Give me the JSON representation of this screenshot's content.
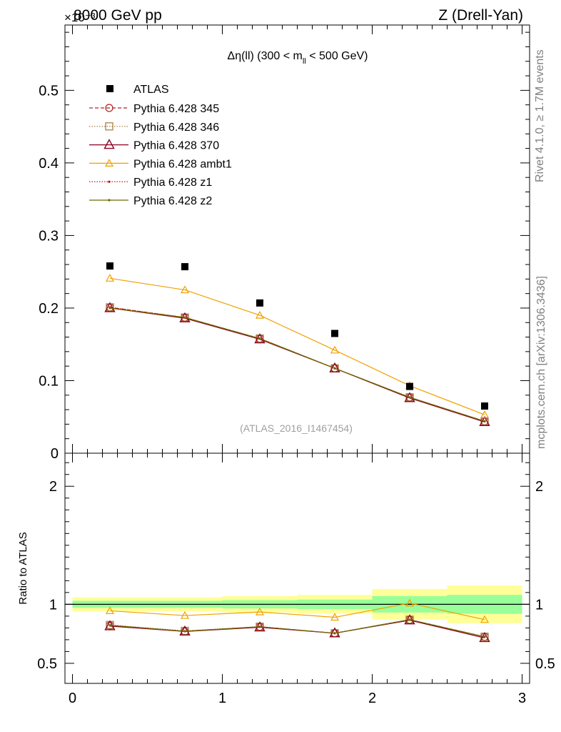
{
  "header": {
    "left_label": "8000 GeV pp",
    "exponent_label": "×10⁻³",
    "right_label": "Z (Drell-Yan)"
  },
  "side_labels": {
    "rivet": "Rivet 4.1.0, ≥ 1.7M events",
    "source": "mcplots.cern.ch [arXiv:1306.3436]"
  },
  "chart_data": {
    "type": "line",
    "title_prefix": "Δη(ll) (300 < m",
    "title_sub": "ll",
    "title_suffix": " < 500 GeV)",
    "watermark": "(ATLAS_2016_I1467454)",
    "xlabel": "",
    "ylabel": "",
    "xlim": [
      -0.05,
      3.05
    ],
    "ylim": [
      0,
      0.59
    ],
    "x_ticks": [
      0,
      1,
      2,
      3
    ],
    "y_ticks": [
      0,
      0.1,
      0.2,
      0.3,
      0.4,
      0.5
    ],
    "y_tick_labels": [
      "0",
      "0.1",
      "0.2",
      "0.3",
      "0.4",
      "0.5"
    ],
    "x_tick_labels": [
      "0",
      "1",
      "2",
      "3"
    ],
    "x": [
      0.25,
      0.75,
      1.25,
      1.75,
      2.25,
      2.75
    ],
    "data": {
      "name": "ATLAS",
      "values": [
        0.258,
        0.257,
        0.207,
        0.165,
        0.092,
        0.065
      ]
    },
    "series": [
      {
        "name": "Pythia 6.428 345",
        "color": "#b22222",
        "style": "dashed",
        "marker": "circle",
        "values": [
          0.201,
          0.187,
          0.158,
          0.117,
          0.077,
          0.044
        ]
      },
      {
        "name": "Pythia 6.428 346",
        "color": "#a0793a",
        "style": "dotted",
        "marker": "square",
        "values": [
          0.201,
          0.187,
          0.158,
          0.117,
          0.077,
          0.044
        ]
      },
      {
        "name": "Pythia 6.428 370",
        "color": "#8b0020",
        "style": "solid",
        "marker": "triangle",
        "values": [
          0.2,
          0.186,
          0.157,
          0.117,
          0.076,
          0.043
        ]
      },
      {
        "name": "Pythia 6.428 ambt1",
        "color": "#f0a000",
        "style": "solid",
        "marker": "triangle-small",
        "values": [
          0.241,
          0.225,
          0.19,
          0.142,
          0.093,
          0.053
        ]
      },
      {
        "name": "Pythia 6.428 z1",
        "color": "#c00000",
        "style": "dotted",
        "marker": "dot",
        "values": [
          0.201,
          0.187,
          0.158,
          0.117,
          0.077,
          0.044
        ]
      },
      {
        "name": "Pythia 6.428 z2",
        "color": "#6b6b00",
        "style": "solid",
        "marker": "dot",
        "values": [
          0.2,
          0.187,
          0.158,
          0.117,
          0.077,
          0.044
        ]
      }
    ],
    "ratio": {
      "ylabel": "Ratio to ATLAS",
      "ylim": [
        0.33,
        2.28
      ],
      "y_ticks": [
        0.5,
        1,
        2
      ],
      "y_tick_labels": [
        "0.5",
        "1",
        "2"
      ],
      "bins": [
        [
          0,
          0.5
        ],
        [
          0.5,
          1
        ],
        [
          1,
          1.5
        ],
        [
          1.5,
          2
        ],
        [
          2,
          2.5
        ],
        [
          2.5,
          3
        ]
      ],
      "band_outer": [
        [
          0.94,
          1.06
        ],
        [
          0.94,
          1.06
        ],
        [
          0.93,
          1.07
        ],
        [
          0.92,
          1.08
        ],
        [
          0.87,
          1.13
        ],
        [
          0.84,
          1.16
        ]
      ],
      "band_inner": [
        [
          0.97,
          1.03
        ],
        [
          0.97,
          1.03
        ],
        [
          0.965,
          1.035
        ],
        [
          0.96,
          1.04
        ],
        [
          0.93,
          1.07
        ],
        [
          0.92,
          1.08
        ]
      ],
      "series": [
        {
          "name": "Pythia 6.428 345",
          "values": [
            0.82,
            0.77,
            0.81,
            0.755,
            0.87,
            0.725
          ]
        },
        {
          "name": "Pythia 6.428 346",
          "values": [
            0.825,
            0.775,
            0.81,
            0.755,
            0.87,
            0.725
          ]
        },
        {
          "name": "Pythia 6.428 370",
          "values": [
            0.815,
            0.77,
            0.805,
            0.755,
            0.865,
            0.715
          ]
        },
        {
          "name": "Pythia 6.428 ambt1",
          "values": [
            0.945,
            0.905,
            0.935,
            0.89,
            1.01,
            0.87
          ]
        },
        {
          "name": "Pythia 6.428 z1",
          "values": [
            0.822,
            0.772,
            0.81,
            0.755,
            0.87,
            0.725
          ]
        },
        {
          "name": "Pythia 6.428 z2",
          "values": [
            0.822,
            0.772,
            0.81,
            0.755,
            0.87,
            0.725
          ]
        }
      ]
    }
  }
}
